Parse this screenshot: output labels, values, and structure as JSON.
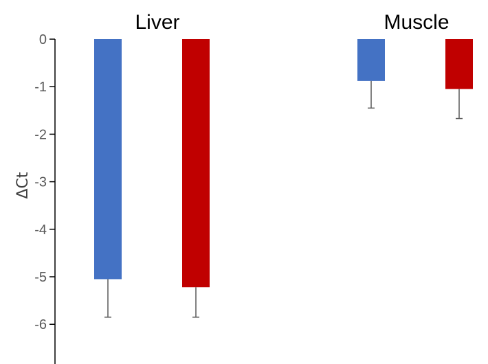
{
  "chart_data": {
    "type": "bar",
    "title": "",
    "xlabel": "",
    "ylabel": "ΔCt",
    "ylim": [
      -7,
      0
    ],
    "yticks": [
      0,
      -1,
      -2,
      -3,
      -4,
      -5,
      -6
    ],
    "grid": false,
    "legend": "none",
    "categories": [
      "Liver",
      "Muscle"
    ],
    "series": [
      {
        "color": "#4472C4",
        "values": [
          -5.05,
          -0.88
        ],
        "errors": [
          0.8,
          0.57
        ]
      },
      {
        "color": "#C00000",
        "values": [
          -5.22,
          -1.05
        ],
        "errors": [
          0.63,
          0.62
        ]
      }
    ]
  }
}
